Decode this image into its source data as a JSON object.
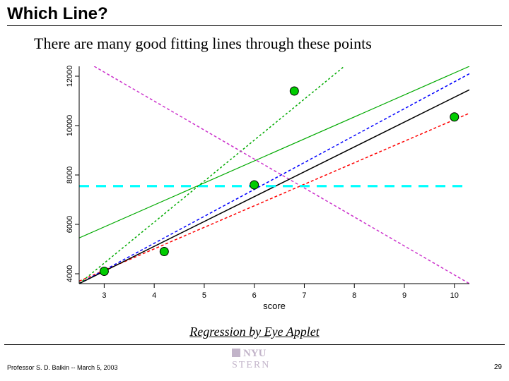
{
  "title": "Which Line?",
  "subtitle": "There are many good fitting lines through these points",
  "link_text": "Regression by Eye Applet",
  "footer_left": "Professor S. D. Balkin -- March 5, 2003",
  "page_number": "29",
  "logo": {
    "top": "NYU",
    "bottom": "STERN"
  },
  "chart": {
    "type": "scatter-with-lines",
    "background_color": "#ffffff",
    "axis_color": "#000000",
    "xlabel": "score",
    "xlabel_fontsize": 13,
    "xlim": [
      2.5,
      10.3
    ],
    "xticks": [
      3,
      4,
      5,
      6,
      7,
      8,
      9,
      10
    ],
    "ylim": [
      3600,
      12400
    ],
    "yticks": [
      4000,
      6000,
      8000,
      10000,
      12000
    ],
    "tick_fontsize": 11,
    "plot_box_only_left_bottom": true,
    "points": {
      "values": [
        {
          "x": 3.0,
          "y": 4100
        },
        {
          "x": 4.2,
          "y": 4900
        },
        {
          "x": 6.0,
          "y": 7600
        },
        {
          "x": 6.8,
          "y": 11400
        },
        {
          "x": 10.0,
          "y": 10350
        }
      ],
      "marker_radius": 6,
      "fill": "#00cc00",
      "stroke": "#000000",
      "stroke_width": 1
    },
    "lines": [
      {
        "color": "#ff0000",
        "dash": "4 3",
        "width": 1.5,
        "p1": {
          "x": 2.5,
          "y": 3700
        },
        "p2": {
          "x": 10.3,
          "y": 10500
        }
      },
      {
        "color": "#00aa00",
        "dash": "3 3",
        "width": 1.5,
        "p1": {
          "x": 2.5,
          "y": 3600
        },
        "p2": {
          "x": 7.8,
          "y": 12400
        }
      },
      {
        "color": "#0000ff",
        "dash": "4 3",
        "width": 1.5,
        "p1": {
          "x": 2.5,
          "y": 3600
        },
        "p2": {
          "x": 10.3,
          "y": 12100
        }
      },
      {
        "color": "#cc33cc",
        "dash": "4 3",
        "width": 1.5,
        "p1": {
          "x": 2.8,
          "y": 12400
        },
        "p2": {
          "x": 10.3,
          "y": 3600
        }
      },
      {
        "color": "#000000",
        "dash": "",
        "width": 1.5,
        "p1": {
          "x": 2.5,
          "y": 3600
        },
        "p2": {
          "x": 10.3,
          "y": 11450
        }
      },
      {
        "color": "#00ffff",
        "dash": "14 10",
        "width": 3.2,
        "p1": {
          "x": 2.5,
          "y": 7550
        },
        "p2": {
          "x": 10.3,
          "y": 7550
        }
      },
      {
        "color": "#00aa00",
        "dash": "",
        "width": 1.2,
        "p1": {
          "x": 2.5,
          "y": 5450
        },
        "p2": {
          "x": 10.3,
          "y": 12400
        }
      }
    ]
  }
}
